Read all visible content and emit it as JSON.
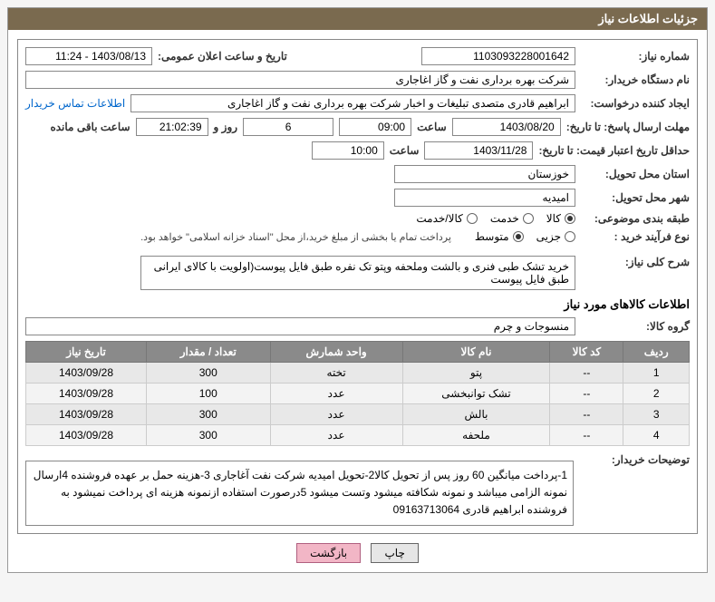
{
  "header": {
    "title": "جزئیات اطلاعات نیاز"
  },
  "labels": {
    "need_no": "شماره نیاز:",
    "announce_dt": "تاریخ و ساعت اعلان عمومی:",
    "buyer_org": "نام دستگاه خریدار:",
    "requester": "ایجاد کننده درخواست:",
    "contact_link": "اطلاعات تماس خریدار",
    "reply_deadline": "مهلت ارسال پاسخ: تا تاریخ:",
    "hour": "ساعت",
    "days_and": "روز و",
    "remaining": "ساعت باقی مانده",
    "min_validity": "حداقل تاریخ اعتبار قیمت: تا تاریخ:",
    "delivery_prov": "استان محل تحویل:",
    "delivery_city": "شهر محل تحویل:",
    "category": "طبقه بندی موضوعی:",
    "purchase_type": "نوع فرآیند خرید :",
    "treasury_note": "پرداخت تمام یا بخشی از مبلغ خرید،از محل \"اسناد خزانه اسلامی\" خواهد بود.",
    "need_desc": "شرح کلی نیاز:",
    "items_title": "اطلاعات کالاهای مورد نیاز",
    "goods_group": "گروه کالا:",
    "buyer_notes": "توضیحات خریدار:"
  },
  "fields": {
    "need_no": "1103093228001642",
    "announce_dt": "1403/08/13 - 11:24",
    "buyer_org": "شرکت بهره برداری نفت و گاز اغاجاری",
    "requester": "ابراهیم قادری متصدی تبلیغات و اخبار شرکت بهره برداری نفت و گاز اغاجاری",
    "reply_date": "1403/08/20",
    "reply_time": "09:00",
    "days_left": "6",
    "countdown": "21:02:39",
    "validity_date": "1403/11/28",
    "validity_time": "10:00",
    "province": "خوزستان",
    "city": "امیدیه",
    "need_desc": "خرید تشک طبی فنری و بالشت وملحفه وپتو تک نفره طبق فایل پیوست(اولویت با کالای ایرانی طبق فایل پیوست",
    "goods_group": "منسوجات و چرم",
    "buyer_notes": "1-پرداخت میانگین 60 روز پس از تحویل کالا2-تحویل امیدیه شرکت نفت آغاجاری 3-هزینه حمل بر عهده فروشنده 4ارسال نمونه الزامی میباشد و نمونه شکافته میشود وتست میشود 5درصورت استفاده ازنمونه هزینه ای پرداخت نمیشود به فروشنده   ابراهیم قادری 09163713064"
  },
  "category_options": {
    "kala": "کالا",
    "khadamat": "خدمت",
    "both": "کالا/خدمت",
    "selected": "kala"
  },
  "purchase_options": {
    "jozi": "جزیی",
    "motavaset": "متوسط",
    "selected": "motavaset"
  },
  "table": {
    "headers": [
      "ردیف",
      "کد کالا",
      "نام کالا",
      "واحد شمارش",
      "تعداد / مقدار",
      "تاریخ نیاز"
    ],
    "rows": [
      [
        "1",
        "--",
        "پتو",
        "تخته",
        "300",
        "1403/09/28"
      ],
      [
        "2",
        "--",
        "تشک توانبخشی",
        "عدد",
        "100",
        "1403/09/28"
      ],
      [
        "3",
        "--",
        "بالش",
        "عدد",
        "300",
        "1403/09/28"
      ],
      [
        "4",
        "--",
        "ملحفه",
        "عدد",
        "300",
        "1403/09/28"
      ]
    ]
  },
  "buttons": {
    "print": "چاپ",
    "back": "بازگشت"
  },
  "style": {
    "header_bg": "#7a6a4f",
    "th_bg": "#8a8a8a",
    "link_color": "#0066cc",
    "back_btn_bg": "#f2b6c6"
  }
}
